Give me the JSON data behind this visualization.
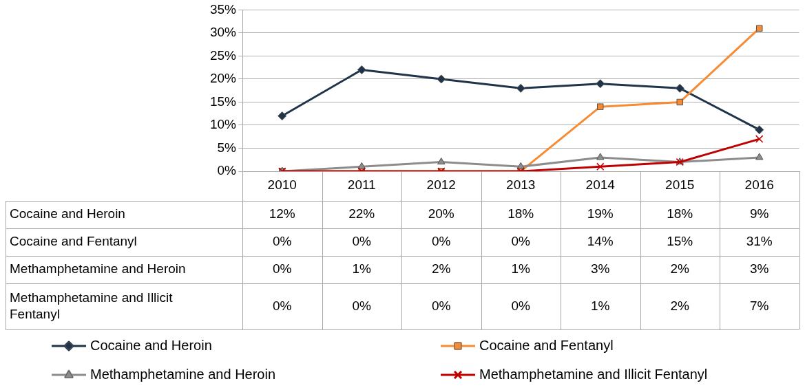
{
  "chart_data": {
    "type": "line",
    "categories": [
      "2010",
      "2011",
      "2012",
      "2013",
      "2014",
      "2015",
      "2016"
    ],
    "series": [
      {
        "name": "Cocaine and Heroin",
        "color": "#1f3349",
        "marker": "diamond",
        "values": [
          12,
          22,
          20,
          18,
          19,
          18,
          9
        ],
        "value_labels": [
          "12%",
          "22%",
          "20%",
          "18%",
          "19%",
          "18%",
          "9%"
        ]
      },
      {
        "name": "Cocaine and Fentanyl",
        "color": "#f68b33",
        "marker": "square",
        "values": [
          0,
          0,
          0,
          0,
          14,
          15,
          31
        ],
        "value_labels": [
          "0%",
          "0%",
          "0%",
          "0%",
          "14%",
          "15%",
          "31%"
        ]
      },
      {
        "name": "Methamphetamine and Heroin",
        "color": "#8c8c8c",
        "marker": "triangle",
        "values": [
          0,
          1,
          2,
          1,
          3,
          2,
          3
        ],
        "value_labels": [
          "0%",
          "1%",
          "2%",
          "1%",
          "3%",
          "2%",
          "3%"
        ]
      },
      {
        "name": "Methamphetamine and Illicit Fentanyl",
        "color": "#c00000",
        "marker": "cross",
        "values": [
          0,
          0,
          0,
          0,
          1,
          2,
          7
        ],
        "value_labels": [
          "0%",
          "0%",
          "0%",
          "0%",
          "1%",
          "2%",
          "7%"
        ]
      }
    ],
    "ylim": [
      0,
      35
    ],
    "yticks": [
      {
        "value": 0,
        "label": "0%"
      },
      {
        "value": 5,
        "label": "5%"
      },
      {
        "value": 10,
        "label": "10%"
      },
      {
        "value": 15,
        "label": "15%"
      },
      {
        "value": 20,
        "label": "20%"
      },
      {
        "value": 25,
        "label": "25%"
      },
      {
        "value": 30,
        "label": "30%"
      },
      {
        "value": 35,
        "label": "35%"
      }
    ],
    "grid": "y",
    "legend": "bottom",
    "line_style": "solid"
  }
}
